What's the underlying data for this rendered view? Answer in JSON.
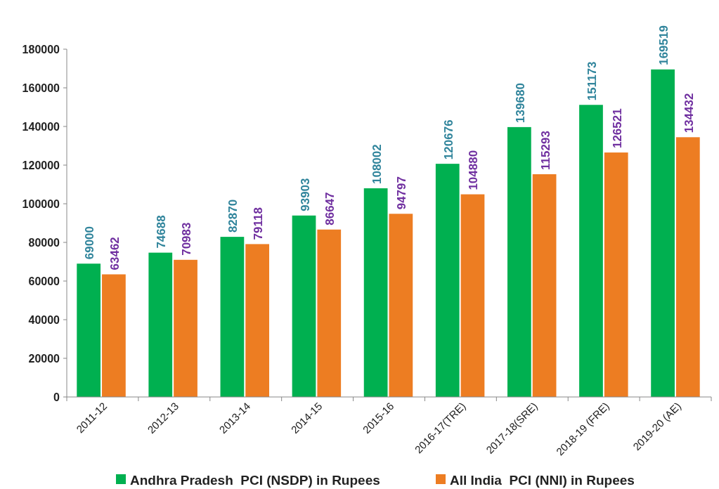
{
  "chart_data": {
    "type": "bar",
    "categories": [
      "2011-12",
      "2012-13",
      "2013-14",
      "2014-15",
      "2015-16",
      "2016-17(TRE)",
      "2017-18(SRE)",
      "2018-19 (FRE)",
      "2019-20 (AE)"
    ],
    "series": [
      {
        "name": "Andhra Pradesh  PCI (NSDP) in Rupees",
        "color": "#00b050",
        "values": [
          69000,
          74688,
          82870,
          93903,
          108002,
          120676,
          139680,
          151173,
          169519
        ]
      },
      {
        "name": "All India  PCI (NNI) in Rupees",
        "color": "#ed7d22",
        "values": [
          63462,
          70983,
          79118,
          86647,
          94797,
          104880,
          115293,
          126521,
          134432
        ]
      }
    ],
    "ylim": [
      0,
      180000
    ],
    "yticks": [
      0,
      20000,
      40000,
      60000,
      80000,
      100000,
      120000,
      140000,
      160000,
      180000
    ],
    "grid": false,
    "legend": "bottom",
    "data_labels": true
  }
}
